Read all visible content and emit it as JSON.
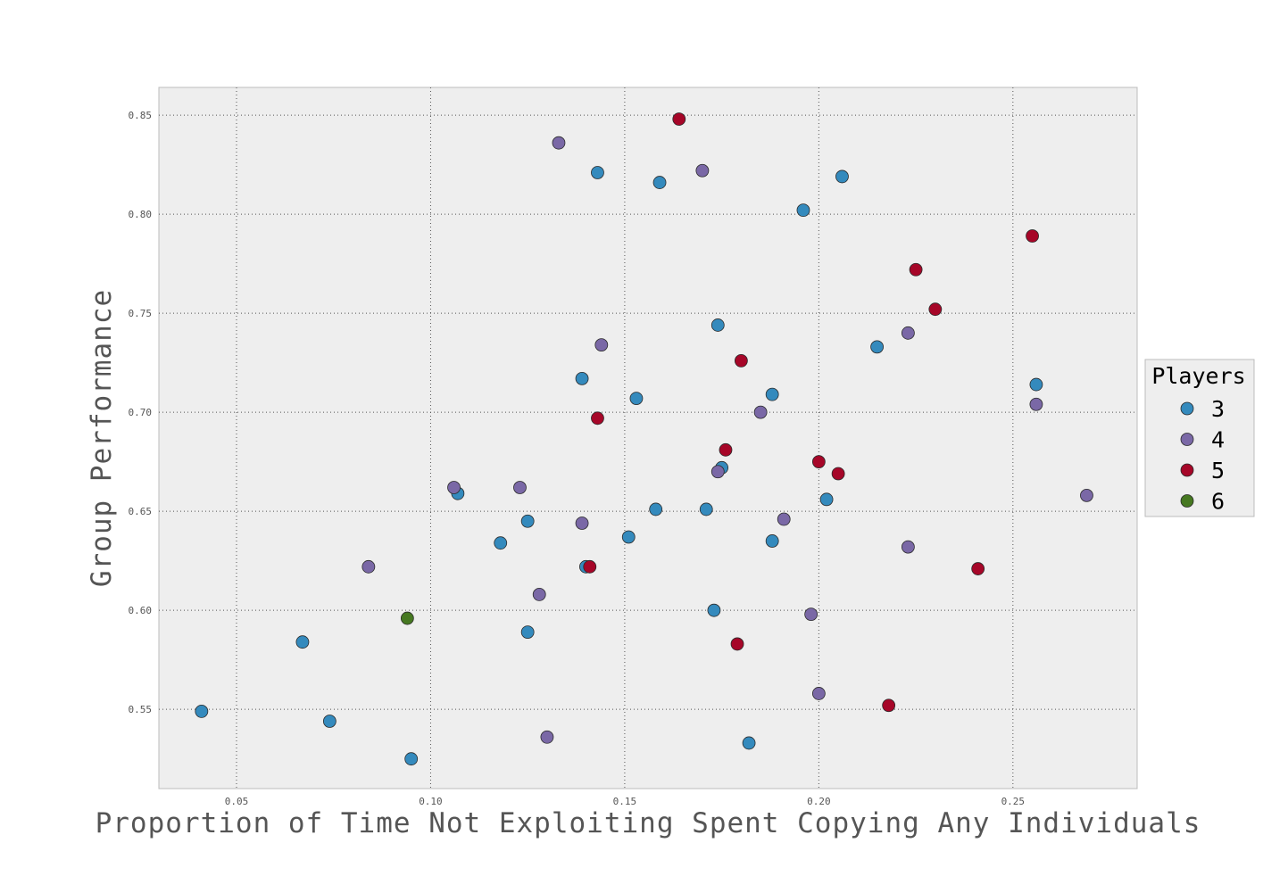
{
  "chart_data": {
    "type": "scatter",
    "title": "",
    "xlabel": "Proportion of Time Not Exploiting Spent Copying Any Individuals",
    "ylabel": "Group Performance",
    "xlim": [
      0.03,
      0.282
    ],
    "ylim": [
      0.51,
      0.864
    ],
    "xticks": [
      "0.05",
      "0.10",
      "0.15",
      "0.20",
      "0.25"
    ],
    "yticks": [
      "0.55",
      "0.60",
      "0.65",
      "0.70",
      "0.75",
      "0.80",
      "0.85"
    ],
    "grid": true,
    "legend": {
      "title": "Players",
      "placement": "right"
    },
    "series": [
      {
        "name": "3",
        "color": "#348abd",
        "points": [
          [
            0.041,
            0.549
          ],
          [
            0.067,
            0.584
          ],
          [
            0.074,
            0.544
          ],
          [
            0.095,
            0.525
          ],
          [
            0.107,
            0.659
          ],
          [
            0.118,
            0.634
          ],
          [
            0.125,
            0.645
          ],
          [
            0.125,
            0.589
          ],
          [
            0.139,
            0.717
          ],
          [
            0.14,
            0.622
          ],
          [
            0.143,
            0.821
          ],
          [
            0.151,
            0.637
          ],
          [
            0.153,
            0.707
          ],
          [
            0.158,
            0.651
          ],
          [
            0.159,
            0.816
          ],
          [
            0.171,
            0.651
          ],
          [
            0.173,
            0.6
          ],
          [
            0.174,
            0.744
          ],
          [
            0.175,
            0.672
          ],
          [
            0.182,
            0.533
          ],
          [
            0.188,
            0.709
          ],
          [
            0.188,
            0.635
          ],
          [
            0.196,
            0.802
          ],
          [
            0.202,
            0.656
          ],
          [
            0.206,
            0.819
          ],
          [
            0.215,
            0.733
          ],
          [
            0.256,
            0.714
          ]
        ]
      },
      {
        "name": "4",
        "color": "#7a68a6",
        "points": [
          [
            0.084,
            0.622
          ],
          [
            0.106,
            0.662
          ],
          [
            0.123,
            0.662
          ],
          [
            0.128,
            0.608
          ],
          [
            0.13,
            0.536
          ],
          [
            0.133,
            0.836
          ],
          [
            0.139,
            0.644
          ],
          [
            0.144,
            0.734
          ],
          [
            0.17,
            0.822
          ],
          [
            0.174,
            0.67
          ],
          [
            0.185,
            0.7
          ],
          [
            0.191,
            0.646
          ],
          [
            0.198,
            0.598
          ],
          [
            0.2,
            0.558
          ],
          [
            0.223,
            0.632
          ],
          [
            0.223,
            0.74
          ],
          [
            0.256,
            0.704
          ],
          [
            0.269,
            0.658
          ]
        ]
      },
      {
        "name": "5",
        "color": "#a60628",
        "points": [
          [
            0.141,
            0.622
          ],
          [
            0.143,
            0.697
          ],
          [
            0.164,
            0.848
          ],
          [
            0.176,
            0.681
          ],
          [
            0.179,
            0.583
          ],
          [
            0.18,
            0.726
          ],
          [
            0.2,
            0.675
          ],
          [
            0.205,
            0.669
          ],
          [
            0.218,
            0.552
          ],
          [
            0.225,
            0.772
          ],
          [
            0.23,
            0.752
          ],
          [
            0.241,
            0.621
          ],
          [
            0.255,
            0.789
          ]
        ]
      },
      {
        "name": "6",
        "color": "#467821",
        "points": [
          [
            0.094,
            0.596
          ]
        ]
      }
    ]
  }
}
